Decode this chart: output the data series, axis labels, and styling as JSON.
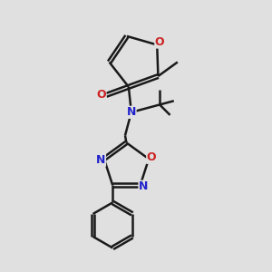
{
  "bg_color": "#e0e0e0",
  "bond_color": "#1a1a1a",
  "bond_width": 1.8,
  "dbo": 0.12,
  "N_color": "#2222cc",
  "O_color": "#cc2222",
  "figsize": [
    3.0,
    3.0
  ],
  "dpi": 100,
  "xlim": [
    0,
    10
  ],
  "ylim": [
    0,
    10
  ]
}
